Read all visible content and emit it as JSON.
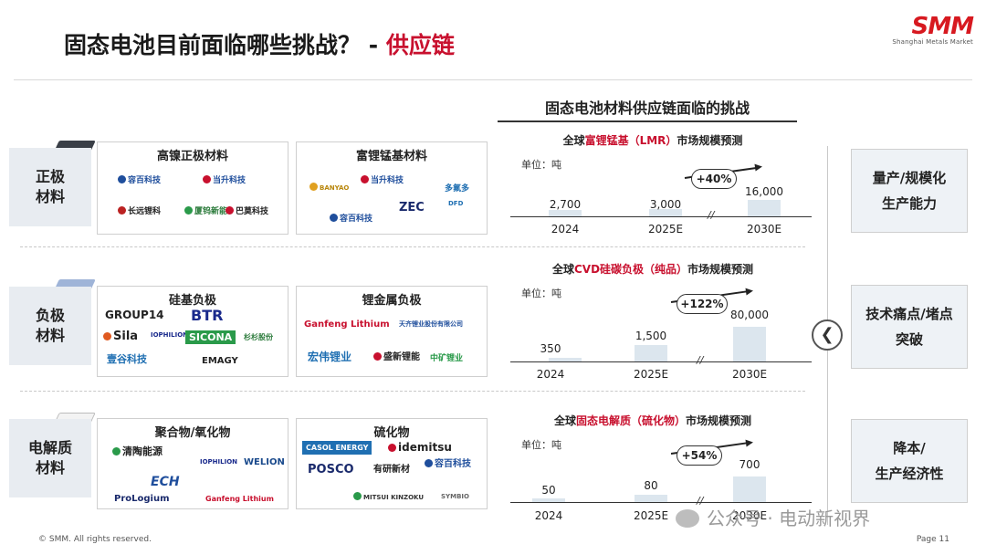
{
  "header": {
    "title": "固态电池目前面临哪些挑战？",
    "separator": " - ",
    "title_highlight": "供应链"
  },
  "logo": {
    "mark": "SMM",
    "subtitle": "Shanghai Metals Market"
  },
  "rows": [
    {
      "label_line1": "正极",
      "label_line2": "材料",
      "boxes": [
        {
          "title": "高镍正极材料",
          "companies": [
            "容百科技",
            "当升科技",
            "长远锂科",
            "厦钨新能",
            "巴莫科技"
          ]
        },
        {
          "title": "富锂锰基材料",
          "companies": [
            "BANYAO",
            "当升科技",
            "ZEC",
            "多氟多",
            "容百科技",
            "DFD"
          ]
        }
      ]
    },
    {
      "label_line1": "负极",
      "label_line2": "材料",
      "boxes": [
        {
          "title": "硅基负极",
          "companies": [
            "GROUP14",
            "BTR",
            "Sila",
            "IOPHILION",
            "SICONA",
            "杉杉股份",
            "壹谷科技",
            "EMAGY"
          ]
        },
        {
          "title": "锂金属负极",
          "companies": [
            "Ganfeng Lithium",
            "天齐锂业股份有限公司",
            "宏伟锂业",
            "盛新锂能",
            "中矿锂业"
          ]
        }
      ]
    },
    {
      "label_line1": "电解质",
      "label_line2": "材料",
      "boxes": [
        {
          "title": "聚合物/氧化物",
          "companies": [
            "清陶能源",
            "IOPHILION",
            "WELION",
            "ECH",
            "ProLogium",
            "Ganfeng Lithium"
          ]
        },
        {
          "title": "硫化物",
          "companies": [
            "CASOL ENERGY",
            "idemitsu",
            "POSCO",
            "有研新材",
            "容百科技",
            "MITSUI KINZOKU",
            "SYMBIO"
          ]
        }
      ]
    }
  ],
  "chart_header": "固态电池材料供应链面临的挑战",
  "markets": [
    {
      "title_pre": "全球",
      "title_hl": "富锂锰基（LMR）",
      "title_post": "市场规模预测",
      "unit": "单位：吨",
      "years": [
        "2024",
        "2025E",
        "2030E"
      ],
      "values": [
        "2,700",
        "3,000",
        "16,000"
      ],
      "growth": "+40%"
    },
    {
      "title_pre": "全球",
      "title_hl": "CVD硅碳负极（纯品）",
      "title_post": "市场规模预测",
      "unit": "单位：吨",
      "years": [
        "2024",
        "2025E",
        "2030E"
      ],
      "values": [
        "350",
        "1,500",
        "80,000"
      ],
      "growth": "+122%"
    },
    {
      "title_pre": "全球",
      "title_hl": "固态电解质（硫化物）",
      "title_post": "市场规模预测",
      "unit": "单位：吨",
      "years": [
        "2024",
        "2025E",
        "2030E"
      ],
      "values": [
        "50",
        "80",
        "700"
      ],
      "growth": "+54%"
    }
  ],
  "chart_data": [
    {
      "type": "bar",
      "title": "全球富锂锰基（LMR）市场规模预测",
      "ylabel": "单位：吨",
      "categories": [
        "2024",
        "2025E",
        "2030E"
      ],
      "values": [
        2700,
        3000,
        16000
      ],
      "annotation": "+40%",
      "axis_break": true
    },
    {
      "type": "bar",
      "title": "全球CVD硅碳负极（纯品）市场规模预测",
      "ylabel": "单位：吨",
      "categories": [
        "2024",
        "2025E",
        "2030E"
      ],
      "values": [
        350,
        1500,
        80000
      ],
      "annotation": "+122%",
      "axis_break": true
    },
    {
      "type": "bar",
      "title": "全球固态电解质（硫化物）市场规模预测",
      "ylabel": "单位：吨",
      "categories": [
        "2024",
        "2025E",
        "2030E"
      ],
      "values": [
        50,
        80,
        700
      ],
      "annotation": "+54%",
      "axis_break": true
    }
  ],
  "challenges": [
    {
      "line1": "量产/规模化",
      "line2": "生产能力"
    },
    {
      "line1": "技术痛点/堵点",
      "line2": "突破"
    },
    {
      "line1": "降本/",
      "line2": "生产经济性"
    }
  ],
  "nav_arrow": "❮",
  "footer": {
    "copyright": "© SMM. All rights reserved.",
    "page": "Page 11"
  },
  "watermark": "公众号 · 电动新视界"
}
